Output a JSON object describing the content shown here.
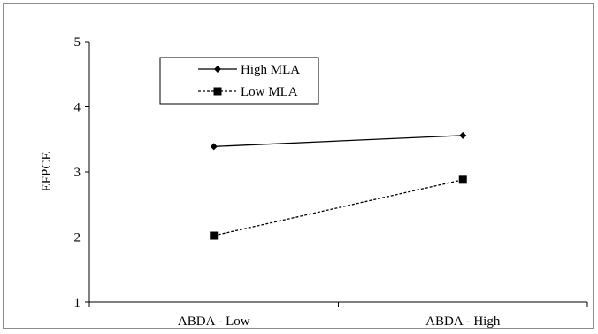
{
  "chart_data": {
    "type": "line",
    "title": "",
    "xlabel": "",
    "ylabel": "EFPCE",
    "categories": [
      "ABDA - Low",
      "ABDA - High"
    ],
    "ylim": [
      1,
      5
    ],
    "yticks": [
      "1",
      "2",
      "3",
      "4",
      "5"
    ],
    "grid": false,
    "legend_position": "top-left",
    "series": [
      {
        "name": "High MLA",
        "values": [
          3.39,
          3.56
        ],
        "line_style": "solid",
        "marker": "diamond",
        "color": "#000000"
      },
      {
        "name": "Low MLA",
        "values": [
          2.02,
          2.88
        ],
        "line_style": "dashed",
        "marker": "square",
        "color": "#000000"
      }
    ]
  }
}
